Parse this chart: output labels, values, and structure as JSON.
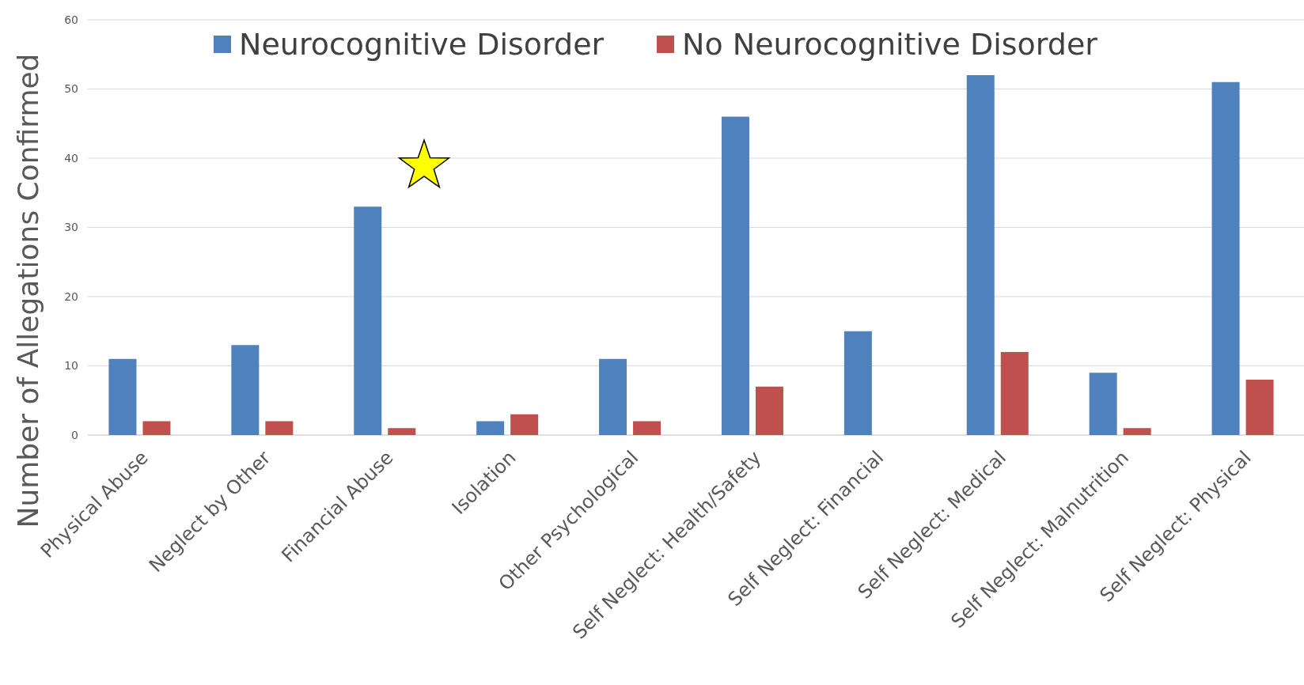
{
  "chart_data": {
    "type": "bar",
    "ylabel": "Number of Allegations Confirmed",
    "categories": [
      "Physical Abuse",
      "Neglect by Other",
      "Financial Abuse",
      "Isolation",
      "Other Psychological",
      "Self Neglect: Health/Safety",
      "Self Neglect: Financial",
      "Self Neglect: Medical",
      "Self Neglect: Malnutrition",
      "Self Neglect: Physical"
    ],
    "series": [
      {
        "name": "Neurocognitive Disorder",
        "color": "#4f81bd",
        "values": [
          11,
          13,
          33,
          2,
          11,
          46,
          15,
          52,
          9,
          51
        ]
      },
      {
        "name": "No Neurocognitive Disorder",
        "color": "#c0504d",
        "values": [
          2,
          2,
          1,
          3,
          2,
          7,
          0,
          12,
          1,
          8
        ]
      }
    ],
    "ylim": [
      0,
      60
    ],
    "yticks": [
      0,
      10,
      20,
      30,
      40,
      50,
      60
    ],
    "grid": "y",
    "legend": "top"
  }
}
